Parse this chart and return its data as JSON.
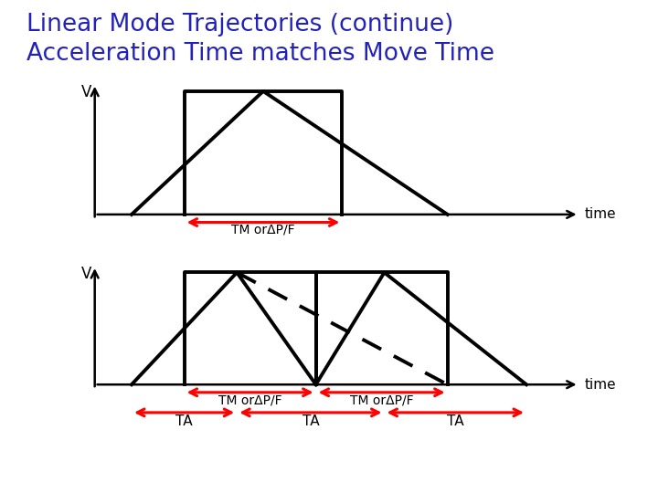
{
  "title_line1": "Linear Mode Trajectories (continue)",
  "title_line2": "Acceleration Time matches Move Time",
  "title_color": "#2222bb",
  "title_fontsize": 19,
  "bg_color": "#ffffff",
  "lw_main": 2.8,
  "lw_axis": 1.8,
  "lw_arrow": 2.0,
  "label_tm": "TM orΔP/F",
  "label_tm2a": "TM orΔP/F",
  "label_tm2b": "TM orΔP/F",
  "label_time": "time",
  "label_v": "V",
  "label_ta": "TA"
}
